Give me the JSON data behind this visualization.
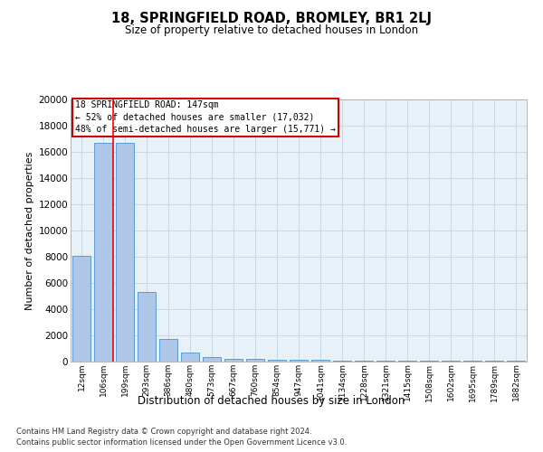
{
  "title1": "18, SPRINGFIELD ROAD, BROMLEY, BR1 2LJ",
  "title2": "Size of property relative to detached houses in London",
  "xlabel": "Distribution of detached houses by size in London",
  "ylabel": "Number of detached properties",
  "bar_labels": [
    "12sqm",
    "106sqm",
    "199sqm",
    "293sqm",
    "386sqm",
    "480sqm",
    "573sqm",
    "667sqm",
    "760sqm",
    "854sqm",
    "947sqm",
    "1041sqm",
    "1134sqm",
    "1228sqm",
    "1321sqm",
    "1415sqm",
    "1508sqm",
    "1602sqm",
    "1695sqm",
    "1789sqm",
    "1882sqm"
  ],
  "bar_heights": [
    8100,
    16700,
    16700,
    5300,
    1750,
    700,
    350,
    230,
    200,
    170,
    130,
    110,
    90,
    80,
    70,
    60,
    55,
    50,
    45,
    40,
    35
  ],
  "bar_color": "#aec6e8",
  "bar_edge_color": "#5b9bd5",
  "grid_color": "#c8d8e8",
  "background_color": "#e8f0f8",
  "annotation_title": "18 SPRINGFIELD ROAD: 147sqm",
  "annotation_line1": "← 52% of detached houses are smaller (17,032)",
  "annotation_line2": "48% of semi-detached houses are larger (15,771) →",
  "annotation_box_color": "#ffffff",
  "annotation_edge_color": "#cc0000",
  "ylim": [
    0,
    20000
  ],
  "yticks": [
    0,
    2000,
    4000,
    6000,
    8000,
    10000,
    12000,
    14000,
    16000,
    18000,
    20000
  ],
  "footer1": "Contains HM Land Registry data © Crown copyright and database right 2024.",
  "footer2": "Contains public sector information licensed under the Open Government Licence v3.0."
}
